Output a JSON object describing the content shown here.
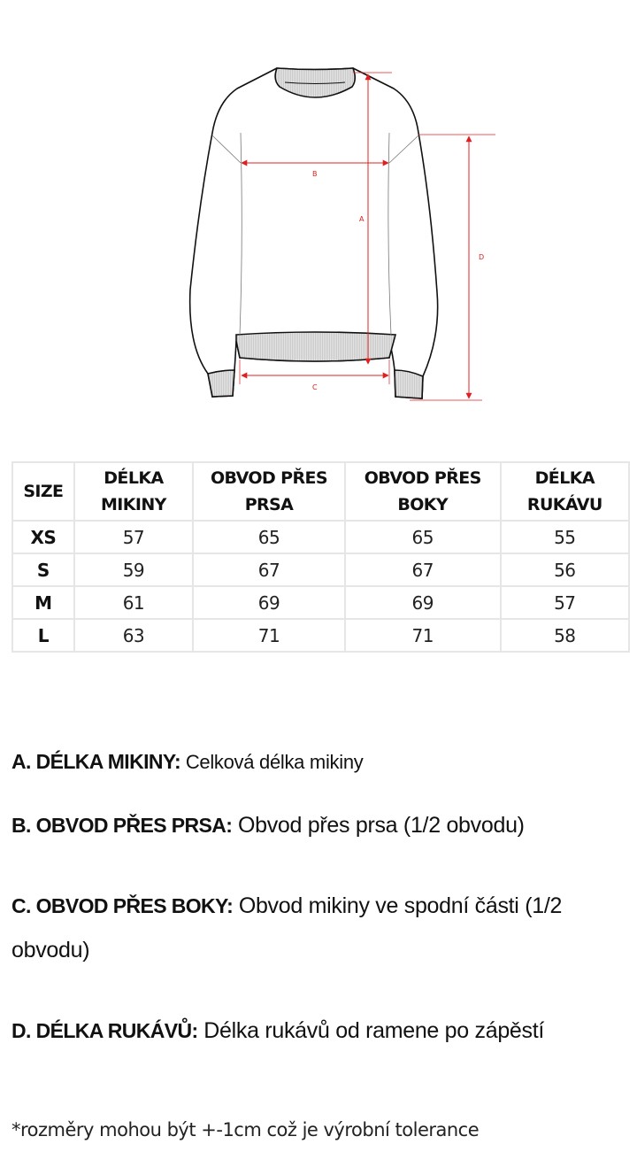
{
  "diagram": {
    "labels": {
      "a": "A",
      "b": "B",
      "c": "C",
      "d": "D"
    },
    "measure_color": "#e02020"
  },
  "table": {
    "headers": [
      "SIZE",
      "DÉLKA MIKINY",
      "OBVOD PŘES PRSA",
      "OBVOD PŘES BOKY",
      "DÉLKA RUKÁVU"
    ],
    "rows": [
      [
        "XS",
        "57",
        "65",
        "65",
        "55"
      ],
      [
        "S",
        "59",
        "67",
        "67",
        "56"
      ],
      [
        "M",
        "61",
        "69",
        "69",
        "57"
      ],
      [
        "L",
        "63",
        "71",
        "71",
        "58"
      ]
    ]
  },
  "definitions": [
    {
      "term": "A. DÉLKA MIKINY:",
      "text": "Celková délka mikiny"
    },
    {
      "term": "B. OBVOD PŘES PRSA:",
      "text": "Obvod přes prsa (1/2 obvodu)"
    },
    {
      "term": "C. OBVOD PŘES BOKY:",
      "text": "Obvod mikiny ve spodní části (1/2 obvodu)"
    },
    {
      "term": "D. DÉLKA RUKÁVŮ:",
      "text": "Délka rukávů od ramene po zápěstí"
    }
  ],
  "note": "*rozměry mohou být +-1cm což je výrobní tolerance"
}
